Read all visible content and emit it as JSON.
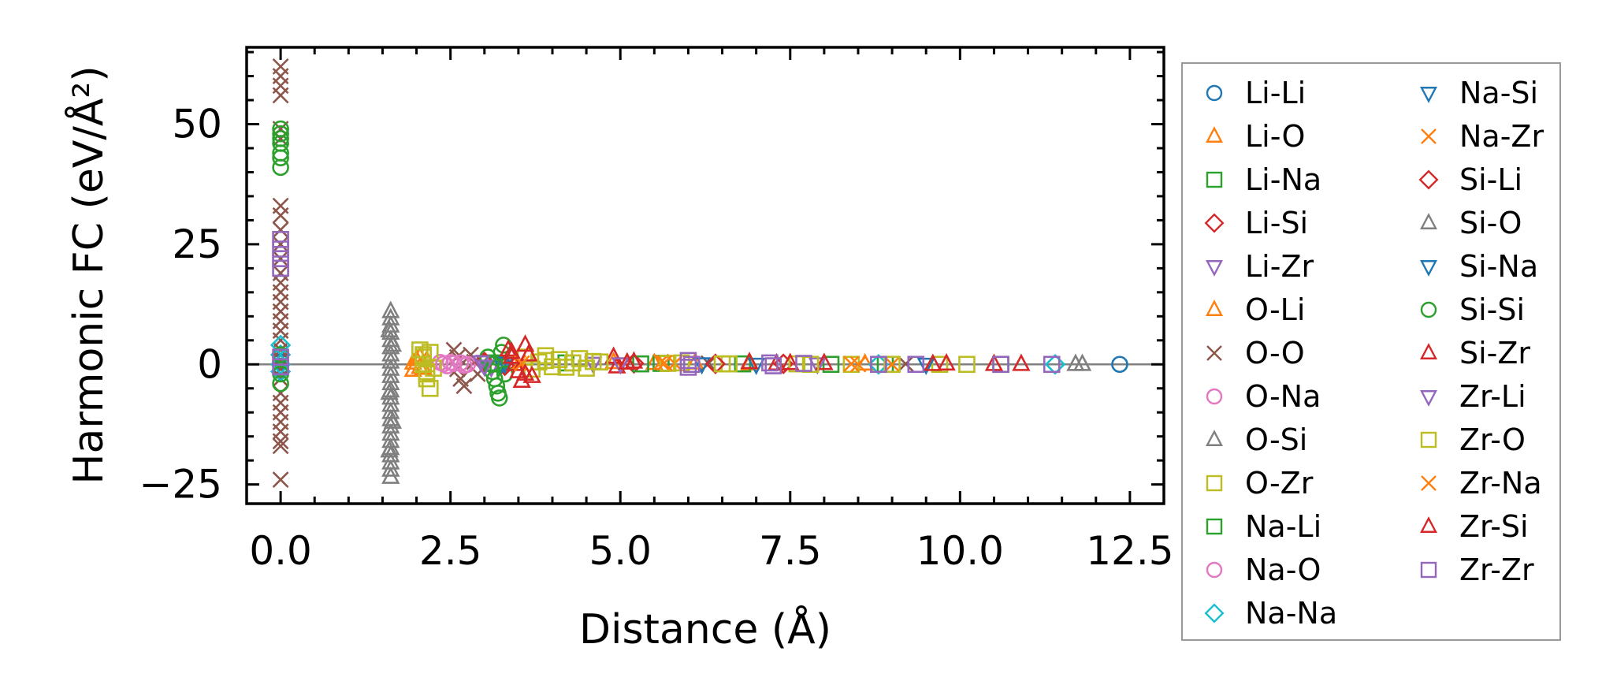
{
  "chart_data": {
    "type": "scatter",
    "title": "",
    "xlabel": "Distance (Å)",
    "ylabel": "Harmonic FC (eV/Å²)",
    "xlim": [
      -0.5,
      13.0
    ],
    "ylim": [
      -29,
      66
    ],
    "xticks": [
      0.0,
      2.5,
      5.0,
      7.5,
      10.0,
      12.5
    ],
    "xtick_labels": [
      "0.0",
      "2.5",
      "5.0",
      "7.5",
      "10.0",
      "12.5"
    ],
    "yticks": [
      -25,
      0,
      25,
      50
    ],
    "ytick_labels": [
      "−25",
      "0",
      "25",
      "50"
    ],
    "hline_y": 0,
    "grid": false,
    "legend_position": "outside right",
    "series": [
      {
        "name": "Li-Li",
        "color": "#1f77b4",
        "marker": "circle",
        "points": [
          [
            0.0,
            1.5
          ],
          [
            0.0,
            0.5
          ],
          [
            0.0,
            -0.5
          ],
          [
            12.35,
            0.0
          ]
        ]
      },
      {
        "name": "Li-O",
        "color": "#ff7f0e",
        "marker": "triangle-up",
        "points": [
          [
            1.95,
            0.3
          ],
          [
            1.95,
            -1.2
          ],
          [
            2.05,
            1.5
          ],
          [
            2.05,
            -0.6
          ],
          [
            2.15,
            0.8
          ],
          [
            4.9,
            0.4
          ],
          [
            5.5,
            0.2
          ],
          [
            6.1,
            0.3
          ],
          [
            6.9,
            0.1
          ]
        ]
      },
      {
        "name": "Li-Na",
        "color": "#2ca02c",
        "marker": "square",
        "points": [
          [
            3.2,
            0.1
          ],
          [
            4.2,
            0.3
          ],
          [
            5.6,
            0.2
          ],
          [
            6.8,
            0.1
          ],
          [
            8.1,
            0.0
          ],
          [
            10.6,
            0.0
          ]
        ]
      },
      {
        "name": "Li-Si",
        "color": "#d62728",
        "marker": "diamond",
        "points": [
          [
            3.0,
            0.5
          ],
          [
            3.3,
            -0.3
          ],
          [
            5.2,
            0.2
          ],
          [
            7.4,
            0.1
          ]
        ]
      },
      {
        "name": "Li-Zr",
        "color": "#9467bd",
        "marker": "triangle-down",
        "points": [
          [
            3.0,
            0.6
          ],
          [
            3.1,
            -0.6
          ],
          [
            4.6,
            0.2
          ],
          [
            7.9,
            0.1
          ]
        ]
      },
      {
        "name": "O-Li",
        "color": "#ff7f0e",
        "marker": "triangle-up",
        "points": [
          [
            2.0,
            1.0
          ],
          [
            2.1,
            -0.8
          ],
          [
            5.1,
            0.3
          ],
          [
            8.6,
            0.1
          ]
        ]
      },
      {
        "name": "O-O",
        "color": "#8c564b",
        "marker": "x",
        "points": [
          [
            0.0,
            62
          ],
          [
            0.0,
            60
          ],
          [
            0.0,
            58
          ],
          [
            0.0,
            56
          ],
          [
            0.0,
            49
          ],
          [
            0.0,
            47
          ],
          [
            0.0,
            33
          ],
          [
            0.0,
            31
          ],
          [
            0.0,
            28
          ],
          [
            0.0,
            25
          ],
          [
            0.0,
            22
          ],
          [
            0.0,
            19
          ],
          [
            0.0,
            17
          ],
          [
            0.0,
            15
          ],
          [
            0.0,
            13
          ],
          [
            0.0,
            11
          ],
          [
            0.0,
            9
          ],
          [
            0.0,
            7
          ],
          [
            0.0,
            5
          ],
          [
            0.0,
            3
          ],
          [
            0.0,
            1
          ],
          [
            0.0,
            -1
          ],
          [
            0.0,
            -3
          ],
          [
            0.0,
            -6
          ],
          [
            0.0,
            -8
          ],
          [
            0.0,
            -10
          ],
          [
            0.0,
            -12
          ],
          [
            0.0,
            -14
          ],
          [
            0.0,
            -16
          ],
          [
            0.0,
            -17
          ],
          [
            0.0,
            -24
          ],
          [
            2.55,
            3.0
          ],
          [
            2.6,
            1.5
          ],
          [
            2.6,
            -1.0
          ],
          [
            2.65,
            -3.0
          ],
          [
            2.7,
            -4.5
          ],
          [
            2.8,
            2.0
          ],
          [
            2.85,
            0.5
          ],
          [
            2.9,
            -2.0
          ],
          [
            5.6,
            0.5
          ],
          [
            6.3,
            0.2
          ],
          [
            9.2,
            0.1
          ]
        ]
      },
      {
        "name": "O-Na",
        "color": "#e377c2",
        "marker": "circle",
        "points": [
          [
            2.35,
            0.4
          ],
          [
            2.45,
            -0.3
          ],
          [
            2.55,
            0.2
          ],
          [
            2.65,
            0.3
          ],
          [
            2.75,
            0.0
          ]
        ]
      },
      {
        "name": "O-Si",
        "color": "#7f7f7f",
        "marker": "triangle-up",
        "points": [
          [
            1.62,
            11
          ],
          [
            1.62,
            9.5
          ],
          [
            1.62,
            8
          ],
          [
            1.62,
            6.5
          ],
          [
            1.62,
            5
          ],
          [
            1.62,
            3.5
          ],
          [
            1.62,
            2
          ],
          [
            1.62,
            0.5
          ],
          [
            1.62,
            -1
          ],
          [
            1.62,
            -2.5
          ],
          [
            1.62,
            -4
          ],
          [
            1.62,
            -5.5
          ],
          [
            1.62,
            -7
          ],
          [
            1.62,
            -8.5
          ],
          [
            1.62,
            -10
          ],
          [
            1.62,
            -11.5
          ],
          [
            1.62,
            -13
          ],
          [
            1.62,
            -14.5
          ],
          [
            1.62,
            -16
          ],
          [
            1.62,
            -17.5
          ],
          [
            1.62,
            -19
          ],
          [
            1.62,
            -20.5
          ],
          [
            1.62,
            -22
          ],
          [
            1.62,
            -23.5
          ],
          [
            1.65,
            4
          ],
          [
            1.65,
            -12
          ],
          [
            11.8,
            0.0
          ]
        ]
      },
      {
        "name": "O-Zr",
        "color": "#bcbd22",
        "marker": "square",
        "points": [
          [
            2.05,
            3.0
          ],
          [
            2.1,
            1.5
          ],
          [
            2.1,
            0.0
          ],
          [
            2.15,
            -1.5
          ],
          [
            2.15,
            -3.0
          ],
          [
            2.2,
            -5.0
          ],
          [
            2.2,
            2.5
          ],
          [
            2.25,
            -0.8
          ],
          [
            3.6,
            1.5
          ],
          [
            3.7,
            -1.0
          ],
          [
            3.8,
            0.5
          ],
          [
            3.9,
            1.8
          ],
          [
            4.0,
            -0.5
          ],
          [
            4.1,
            1.0
          ],
          [
            4.3,
            0.3
          ],
          [
            4.4,
            1.2
          ],
          [
            4.5,
            -0.8
          ],
          [
            4.6,
            0.6
          ],
          [
            5.9,
            0.3
          ],
          [
            6.6,
            0.1
          ],
          [
            7.6,
            0.1
          ],
          [
            8.4,
            0.0
          ],
          [
            9.7,
            0.0
          ]
        ]
      },
      {
        "name": "Na-Li",
        "color": "#2ca02c",
        "marker": "square",
        "points": [
          [
            3.15,
            0.3
          ],
          [
            5.3,
            0.1
          ],
          [
            8.9,
            0.0
          ]
        ]
      },
      {
        "name": "Na-O",
        "color": "#e377c2",
        "marker": "circle",
        "points": [
          [
            2.4,
            0.1
          ],
          [
            2.5,
            0.4
          ],
          [
            2.7,
            -0.2
          ]
        ]
      },
      {
        "name": "Na-Na",
        "color": "#17becf",
        "marker": "diamond",
        "points": [
          [
            0.0,
            4.0
          ],
          [
            0.0,
            2.0
          ],
          [
            0.0,
            0.0
          ],
          [
            0.0,
            -1.5
          ],
          [
            8.8,
            0.0
          ],
          [
            11.4,
            0.0
          ]
        ]
      },
      {
        "name": "Na-Si",
        "color": "#1f77b4",
        "marker": "triangle-down",
        "points": [
          [
            3.3,
            0.2
          ],
          [
            6.2,
            0.1
          ],
          [
            9.5,
            0.0
          ]
        ]
      },
      {
        "name": "Na-Zr",
        "color": "#ff7f0e",
        "marker": "x",
        "points": [
          [
            3.5,
            0.3
          ],
          [
            5.6,
            0.5
          ],
          [
            5.8,
            0.2
          ],
          [
            8.4,
            0.1
          ],
          [
            9.0,
            0.0
          ]
        ]
      },
      {
        "name": "Si-Li",
        "color": "#d62728",
        "marker": "diamond",
        "points": [
          [
            3.0,
            0.4
          ],
          [
            6.4,
            0.1
          ]
        ]
      },
      {
        "name": "Si-O",
        "color": "#7f7f7f",
        "marker": "triangle-up",
        "points": [
          [
            1.6,
            7.0
          ],
          [
            1.6,
            -6.0
          ],
          [
            1.6,
            -18.0
          ],
          [
            11.7,
            0.0
          ]
        ]
      },
      {
        "name": "Si-Na",
        "color": "#1f77b4",
        "marker": "triangle-down",
        "points": [
          [
            3.25,
            0.1
          ],
          [
            7.0,
            0.0
          ]
        ]
      },
      {
        "name": "Si-Si",
        "color": "#2ca02c",
        "marker": "circle",
        "points": [
          [
            0.0,
            49
          ],
          [
            0.0,
            48
          ],
          [
            0.0,
            47
          ],
          [
            0.0,
            46
          ],
          [
            0.0,
            44
          ],
          [
            0.0,
            43
          ],
          [
            0.0,
            41
          ],
          [
            0.0,
            2
          ],
          [
            0.0,
            -2
          ],
          [
            0.0,
            -4
          ],
          [
            3.05,
            1.5
          ],
          [
            3.1,
            0.0
          ],
          [
            3.12,
            -1.5
          ],
          [
            3.15,
            -3.0
          ],
          [
            3.18,
            -4.5
          ],
          [
            3.2,
            -6.0
          ],
          [
            3.22,
            -7.0
          ],
          [
            3.25,
            2.5
          ],
          [
            3.28,
            4.0
          ],
          [
            3.3,
            -2.0
          ]
        ]
      },
      {
        "name": "Si-Zr",
        "color": "#d62728",
        "marker": "triangle-up",
        "points": [
          [
            3.35,
            3.0
          ],
          [
            3.4,
            1.5
          ],
          [
            3.45,
            0.0
          ],
          [
            3.5,
            -1.5
          ],
          [
            3.55,
            -3.5
          ],
          [
            3.6,
            4.0
          ],
          [
            3.65,
            2.0
          ],
          [
            3.7,
            -2.5
          ],
          [
            4.9,
            1.5
          ],
          [
            4.95,
            -0.5
          ],
          [
            5.2,
            0.5
          ],
          [
            6.9,
            0.4
          ],
          [
            7.5,
            0.2
          ],
          [
            8.0,
            0.2
          ],
          [
            9.8,
            0.1
          ],
          [
            10.5,
            0.0
          ],
          [
            10.9,
            0.0
          ]
        ]
      },
      {
        "name": "Zr-Li",
        "color": "#9467bd",
        "marker": "triangle-down",
        "points": [
          [
            2.95,
            0.5
          ],
          [
            3.0,
            -0.4
          ],
          [
            5.0,
            0.1
          ]
        ]
      },
      {
        "name": "Zr-O",
        "color": "#bcbd22",
        "marker": "square",
        "points": [
          [
            2.1,
            2.0
          ],
          [
            2.15,
            -2.0
          ],
          [
            3.9,
            0.8
          ],
          [
            4.2,
            -0.6
          ],
          [
            4.7,
            0.5
          ],
          [
            5.7,
            0.2
          ],
          [
            6.5,
            0.1
          ],
          [
            7.8,
            0.0
          ],
          [
            9.0,
            0.0
          ],
          [
            10.1,
            0.0
          ]
        ]
      },
      {
        "name": "Zr-Na",
        "color": "#ff7f0e",
        "marker": "x",
        "points": [
          [
            3.55,
            0.2
          ],
          [
            5.65,
            0.3
          ],
          [
            8.5,
            0.0
          ]
        ]
      },
      {
        "name": "Zr-Si",
        "color": "#d62728",
        "marker": "triangle-up",
        "points": [
          [
            3.4,
            2.5
          ],
          [
            3.6,
            -2.0
          ],
          [
            5.1,
            0.3
          ],
          [
            7.3,
            0.1
          ],
          [
            9.6,
            0.0
          ]
        ]
      },
      {
        "name": "Zr-Zr",
        "color": "#9467bd",
        "marker": "square",
        "points": [
          [
            0.0,
            26
          ],
          [
            0.0,
            24
          ],
          [
            0.0,
            22
          ],
          [
            0.0,
            20
          ],
          [
            0.0,
            1.5
          ],
          [
            0.0,
            -0.5
          ],
          [
            6.0,
            0.8
          ],
          [
            6.0,
            -0.6
          ],
          [
            6.05,
            0.0
          ],
          [
            7.2,
            0.3
          ],
          [
            7.25,
            -0.3
          ],
          [
            7.7,
            0.2
          ],
          [
            8.8,
            0.0
          ],
          [
            9.35,
            0.0
          ],
          [
            10.6,
            0.0
          ],
          [
            11.35,
            0.0
          ]
        ]
      }
    ]
  }
}
